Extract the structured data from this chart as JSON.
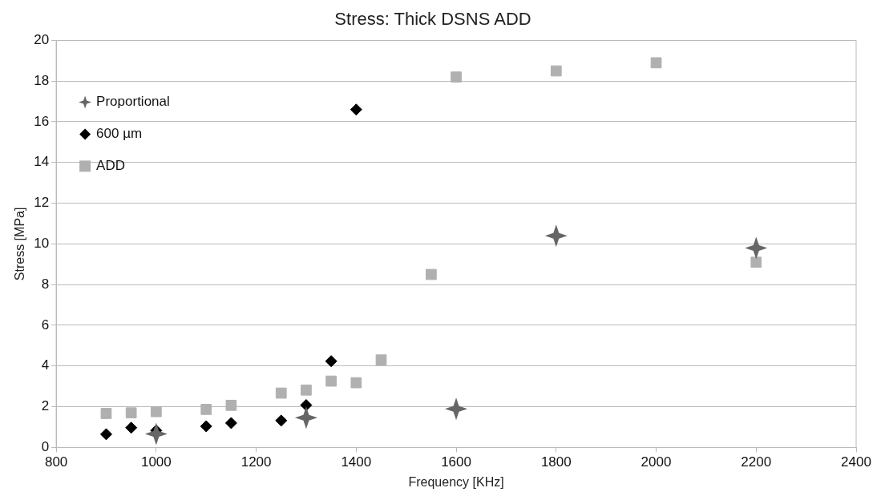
{
  "chart_data": {
    "type": "scatter",
    "title": "Stress: Thick DSNS ADD",
    "xlabel": "Frequency [KHz]",
    "ylabel": "Stress [MPa]",
    "xlim": [
      800,
      2400
    ],
    "xticks": [
      800,
      1000,
      1200,
      1400,
      1600,
      1800,
      2000,
      2200,
      2400
    ],
    "ylim": [
      0,
      20
    ],
    "yticks": [
      0,
      2,
      4,
      6,
      8,
      10,
      12,
      14,
      16,
      18,
      20
    ],
    "grid": "y",
    "legend": "top left",
    "series": [
      {
        "name": "Proportional",
        "color": "#666666",
        "marker": "star",
        "x": [
          1000,
          1300,
          1600,
          1800,
          2200
        ],
        "values": [
          0.67,
          1.46,
          1.9,
          10.4,
          9.8
        ]
      },
      {
        "name": "600 µm",
        "color": "#000000",
        "marker": "diamond",
        "x": [
          900,
          950,
          1000,
          1100,
          1150,
          1250,
          1300,
          1350,
          1400
        ],
        "values": [
          0.65,
          0.97,
          0.83,
          1.04,
          1.2,
          1.32,
          2.08,
          4.24,
          16.6
        ]
      },
      {
        "name": "ADD",
        "color": "#b0b0b0",
        "marker": "square",
        "x": [
          900,
          950,
          1000,
          1100,
          1150,
          1250,
          1300,
          1350,
          1400,
          1450,
          1550,
          1600,
          1800,
          2000,
          2200
        ],
        "values": [
          1.67,
          1.7,
          1.76,
          1.87,
          2.07,
          2.67,
          2.82,
          3.26,
          3.18,
          4.3,
          8.5,
          18.2,
          18.5,
          18.9,
          9.1
        ]
      }
    ]
  }
}
